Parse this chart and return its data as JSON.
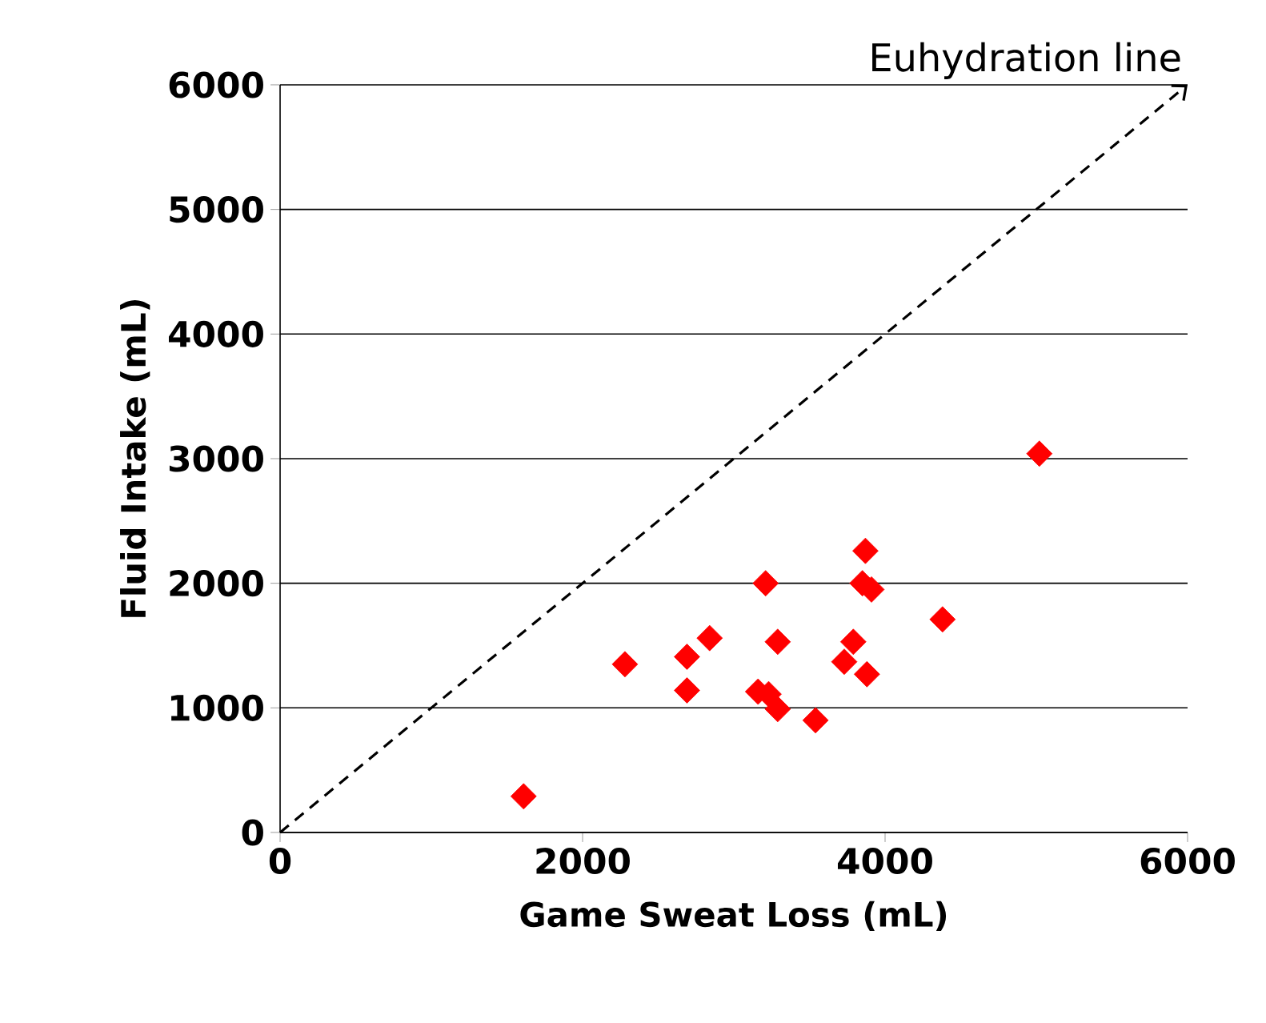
{
  "chart_data": {
    "type": "scatter",
    "xlabel": "Game Sweat Loss (mL)",
    "ylabel": "Fluid Intake (mL)",
    "xlim": [
      0,
      6000
    ],
    "xticks": [
      0,
      2000,
      4000,
      6000
    ],
    "ylim": [
      0,
      6000
    ],
    "yticks": [
      0,
      1000,
      2000,
      3000,
      4000,
      5000,
      6000
    ],
    "grid": "y",
    "series": [
      {
        "marker": "diamond",
        "color": "#ff0000",
        "x": [
          1610,
          2280,
          2690,
          2690,
          2840,
          3210,
          3160,
          3230,
          3290,
          3290,
          3540,
          3730,
          3790,
          3870,
          3850,
          3910,
          3880,
          4380,
          5020
        ],
        "values": [
          290,
          1350,
          1140,
          1410,
          1560,
          2000,
          1130,
          1110,
          990,
          1530,
          900,
          1370,
          1530,
          2260,
          2000,
          1950,
          1270,
          1710,
          3040
        ]
      },
      {
        "type": "line",
        "name": "Euhydration line",
        "line_style": "dashed",
        "color": "#000000",
        "x": [
          0,
          6000
        ],
        "values": [
          0,
          6000
        ]
      }
    ]
  }
}
